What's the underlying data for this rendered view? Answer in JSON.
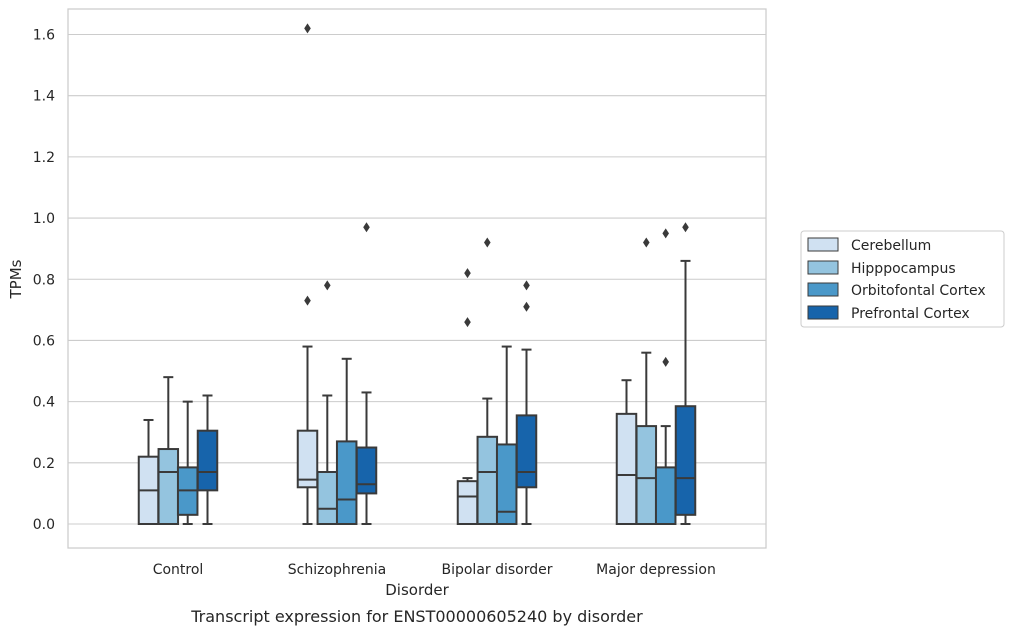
{
  "chart_data": {
    "type": "box",
    "title": "",
    "caption": "Transcript expression for ENST00000605240 by disorder",
    "xlabel": "Disorder",
    "ylabel": "TPMs",
    "ylim": [
      -0.08,
      1.7
    ],
    "yticks": [
      0.0,
      0.2,
      0.4,
      0.6,
      0.8,
      1.0,
      1.2,
      1.4,
      1.6
    ],
    "ytick_labels": [
      "0.0",
      "0.2",
      "0.4",
      "0.6",
      "0.8",
      "1.0",
      "1.2",
      "1.4",
      "1.6"
    ],
    "grid": true,
    "legend_position": "right",
    "categories": [
      "Control",
      "Schizophrenia",
      "Bipolar disorder",
      "Major depression"
    ],
    "series": [
      {
        "name": "Cerebellum",
        "color": "#d0e1f2",
        "boxes": [
          {
            "q1": 0.0,
            "median": 0.11,
            "q3": 0.22,
            "whisker_low": 0.0,
            "whisker_high": 0.34,
            "outliers": []
          },
          {
            "q1": 0.12,
            "median": 0.145,
            "q3": 0.305,
            "whisker_low": 0.0,
            "whisker_high": 0.58,
            "outliers": [
              0.73,
              1.62
            ]
          },
          {
            "q1": 0.0,
            "median": 0.09,
            "q3": 0.14,
            "whisker_low": 0.0,
            "whisker_high": 0.15,
            "outliers": [
              0.66,
              0.82
            ]
          },
          {
            "q1": 0.0,
            "median": 0.16,
            "q3": 0.36,
            "whisker_low": 0.0,
            "whisker_high": 0.47,
            "outliers": []
          }
        ]
      },
      {
        "name": "Hipppocampus",
        "color": "#94c4df",
        "boxes": [
          {
            "q1": 0.0,
            "median": 0.17,
            "q3": 0.245,
            "whisker_low": 0.0,
            "whisker_high": 0.48,
            "outliers": []
          },
          {
            "q1": 0.0,
            "median": 0.05,
            "q3": 0.17,
            "whisker_low": 0.0,
            "whisker_high": 0.42,
            "outliers": [
              0.78
            ]
          },
          {
            "q1": 0.0,
            "median": 0.17,
            "q3": 0.285,
            "whisker_low": 0.0,
            "whisker_high": 0.41,
            "outliers": [
              0.92
            ]
          },
          {
            "q1": 0.0,
            "median": 0.15,
            "q3": 0.32,
            "whisker_low": 0.0,
            "whisker_high": 0.56,
            "outliers": [
              0.92
            ]
          }
        ]
      },
      {
        "name": "Orbitofontal Cortex",
        "color": "#4a98c9",
        "boxes": [
          {
            "q1": 0.03,
            "median": 0.11,
            "q3": 0.185,
            "whisker_low": 0.0,
            "whisker_high": 0.4,
            "outliers": []
          },
          {
            "q1": 0.0,
            "median": 0.08,
            "q3": 0.27,
            "whisker_low": 0.0,
            "whisker_high": 0.54,
            "outliers": []
          },
          {
            "q1": 0.0,
            "median": 0.04,
            "q3": 0.26,
            "whisker_low": 0.0,
            "whisker_high": 0.58,
            "outliers": []
          },
          {
            "q1": 0.0,
            "median": 0.0,
            "q3": 0.185,
            "whisker_low": 0.0,
            "whisker_high": 0.32,
            "outliers": [
              0.53,
              0.95
            ]
          }
        ]
      },
      {
        "name": "Prefrontal Cortex",
        "color": "#1764ab",
        "boxes": [
          {
            "q1": 0.11,
            "median": 0.17,
            "q3": 0.305,
            "whisker_low": 0.0,
            "whisker_high": 0.42,
            "outliers": []
          },
          {
            "q1": 0.1,
            "median": 0.13,
            "q3": 0.25,
            "whisker_low": 0.0,
            "whisker_high": 0.43,
            "outliers": [
              0.97
            ]
          },
          {
            "q1": 0.12,
            "median": 0.17,
            "q3": 0.355,
            "whisker_low": 0.0,
            "whisker_high": 0.57,
            "outliers": [
              0.71,
              0.78
            ]
          },
          {
            "q1": 0.03,
            "median": 0.15,
            "q3": 0.385,
            "whisker_low": 0.0,
            "whisker_high": 0.86,
            "outliers": [
              0.97
            ]
          }
        ]
      }
    ]
  }
}
